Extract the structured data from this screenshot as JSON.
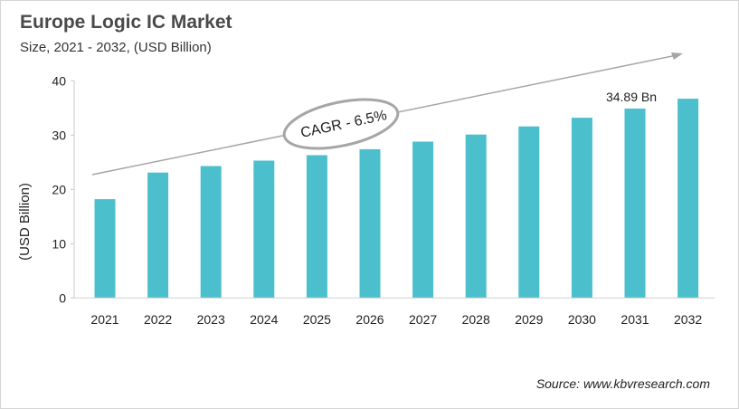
{
  "chart_data": {
    "type": "bar",
    "title": "Europe Logic IC Market",
    "subtitle": "Size, 2021 - 2032, (USD Billion)",
    "ylabel": "(USD Billion)",
    "xlabel": "",
    "categories": [
      "2021",
      "2022",
      "2023",
      "2024",
      "2025",
      "2026",
      "2027",
      "2028",
      "2029",
      "2030",
      "2031",
      "2032"
    ],
    "values": [
      18.2,
      23.1,
      24.3,
      25.3,
      26.3,
      27.4,
      28.8,
      30.1,
      31.6,
      33.2,
      34.89,
      36.7
    ],
    "ylim": [
      0,
      40
    ],
    "yticks": [
      0,
      10,
      20,
      30,
      40
    ],
    "grid": false,
    "bar_color": "#4bc0cc",
    "data_labels": [
      {
        "category": "2031",
        "text": "34.89 Bn"
      }
    ],
    "annotation": "CAGR - 6.5%",
    "source": "Source: www.kbvresearch.com"
  }
}
